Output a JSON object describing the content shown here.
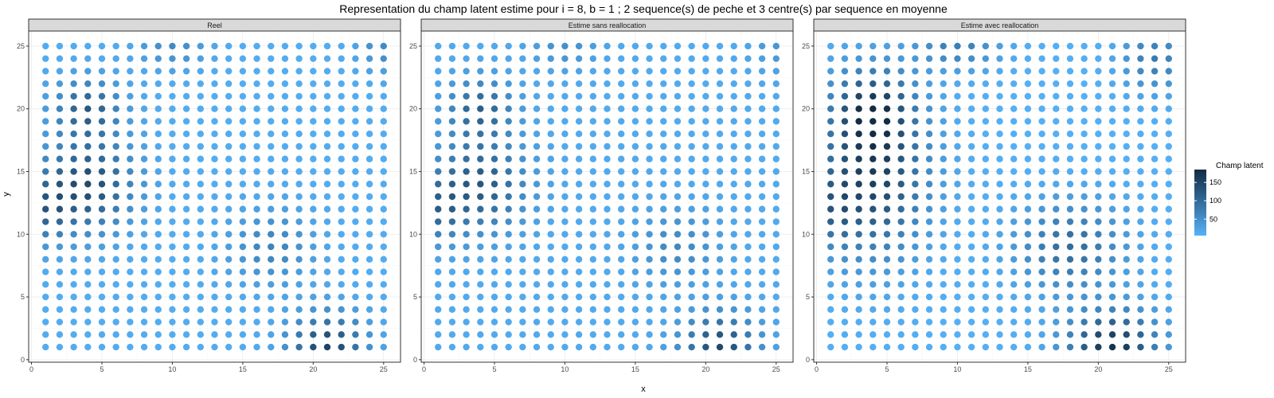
{
  "chart_data": {
    "type": "scatter",
    "title": "Representation du champ latent estime pour i = 8, b = 1 ; 2 sequence(s) de peche et 3 centre(s) par sequence en moyenne",
    "xlabel": "x",
    "ylabel": "y",
    "xlim": [
      -0.2,
      26.2
    ],
    "ylim": [
      -0.2,
      26.2
    ],
    "xticks": [
      0,
      5,
      10,
      15,
      20,
      25
    ],
    "yticks": [
      0,
      5,
      10,
      15,
      20,
      25
    ],
    "grid": true,
    "grid_x": [
      1,
      25
    ],
    "grid_y": [
      1,
      25
    ],
    "legend": {
      "title": "Champ latent",
      "placement": "right",
      "min": 5,
      "max": 185,
      "ticks": [
        50,
        100,
        150
      ],
      "low_color": "#56B1F7",
      "high_color": "#132B43"
    },
    "panels": [
      {
        "label": "Reel",
        "baseline": 12,
        "hotspots": [
          {
            "cx": 4,
            "cy": 14,
            "peak": 130,
            "sx": 2.2,
            "sy": 2.5
          },
          {
            "cx": 1,
            "cy": 12,
            "peak": 80,
            "sx": 1.2,
            "sy": 1.8
          },
          {
            "cx": 4,
            "cy": 20,
            "peak": 105,
            "sx": 1.6,
            "sy": 1.6
          },
          {
            "cx": 10,
            "cy": 25,
            "peak": 45,
            "sx": 1.6,
            "sy": 1.2
          },
          {
            "cx": 17,
            "cy": 9,
            "peak": 55,
            "sx": 2.0,
            "sy": 2.0
          },
          {
            "cx": 21,
            "cy": 1,
            "peak": 140,
            "sx": 1.8,
            "sy": 1.8
          },
          {
            "cx": 25,
            "cy": 25,
            "peak": 45,
            "sx": 1.2,
            "sy": 1.5
          }
        ]
      },
      {
        "label": "Estime sans reallocation",
        "baseline": 15,
        "hotspots": [
          {
            "cx": 4,
            "cy": 14,
            "peak": 110,
            "sx": 2.2,
            "sy": 2.5
          },
          {
            "cx": 1,
            "cy": 12,
            "peak": 70,
            "sx": 1.2,
            "sy": 1.8
          },
          {
            "cx": 4,
            "cy": 20,
            "peak": 95,
            "sx": 1.6,
            "sy": 1.6
          },
          {
            "cx": 10,
            "cy": 25,
            "peak": 35,
            "sx": 1.6,
            "sy": 1.2
          },
          {
            "cx": 18,
            "cy": 9,
            "peak": 45,
            "sx": 2.0,
            "sy": 2.0
          },
          {
            "cx": 21,
            "cy": 1,
            "peak": 130,
            "sx": 1.8,
            "sy": 1.8
          },
          {
            "cx": 25,
            "cy": 25,
            "peak": 25,
            "sx": 1.2,
            "sy": 1.5
          }
        ]
      },
      {
        "label": "Estime avec reallocation",
        "baseline": 8,
        "hotspots": [
          {
            "cx": 4,
            "cy": 15,
            "peak": 150,
            "sx": 2.6,
            "sy": 4.5
          },
          {
            "cx": 1,
            "cy": 12,
            "peak": 60,
            "sx": 1.2,
            "sy": 2.0
          },
          {
            "cx": 4,
            "cy": 20,
            "peak": 110,
            "sx": 1.8,
            "sy": 2.0
          },
          {
            "cx": 10,
            "cy": 25,
            "peak": 65,
            "sx": 2.0,
            "sy": 1.3
          },
          {
            "cx": 18,
            "cy": 9,
            "peak": 90,
            "sx": 2.6,
            "sy": 2.4
          },
          {
            "cx": 21,
            "cy": 1,
            "peak": 165,
            "sx": 2.2,
            "sy": 2.0
          },
          {
            "cx": 24,
            "cy": 24,
            "peak": 70,
            "sx": 1.6,
            "sy": 1.8
          }
        ]
      }
    ]
  }
}
